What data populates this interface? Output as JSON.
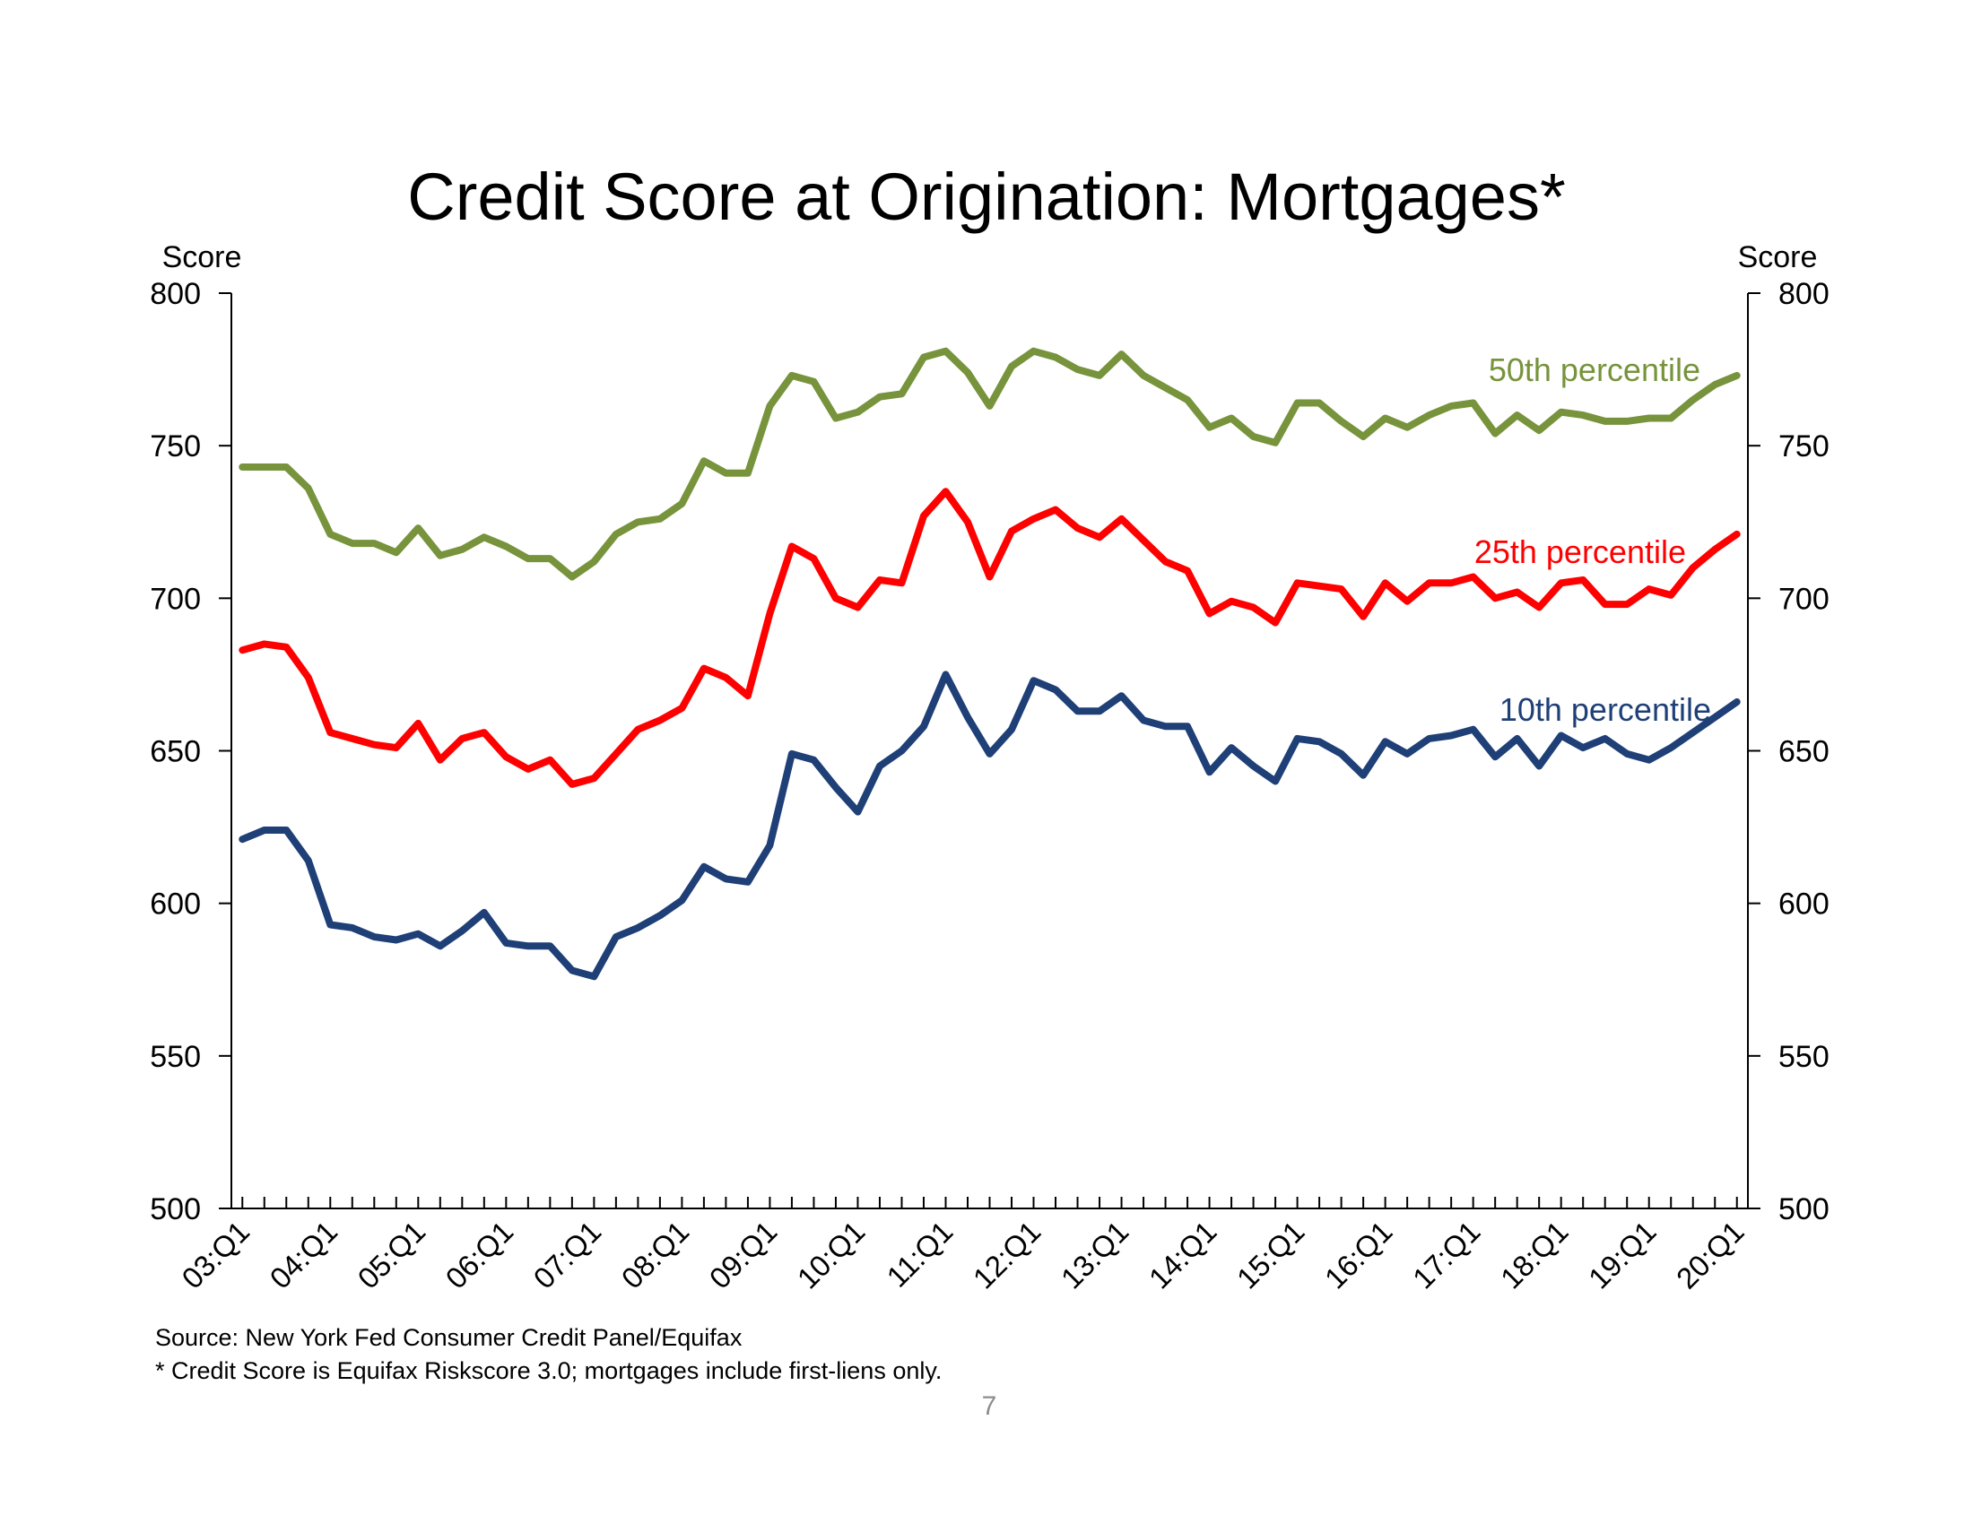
{
  "chart_data": {
    "type": "line",
    "title": "Credit Score at Origination: Mortgages*",
    "ylabel_left": "Score",
    "ylabel_right": "Score",
    "ylim": [
      500,
      800
    ],
    "yticks": [
      500,
      550,
      600,
      650,
      700,
      750,
      800
    ],
    "grid": false,
    "x": [
      "03:Q1",
      "03:Q2",
      "03:Q3",
      "03:Q4",
      "04:Q1",
      "04:Q2",
      "04:Q3",
      "04:Q4",
      "05:Q1",
      "05:Q2",
      "05:Q3",
      "05:Q4",
      "06:Q1",
      "06:Q2",
      "06:Q3",
      "06:Q4",
      "07:Q1",
      "07:Q2",
      "07:Q3",
      "07:Q4",
      "08:Q1",
      "08:Q2",
      "08:Q3",
      "08:Q4",
      "09:Q1",
      "09:Q2",
      "09:Q3",
      "09:Q4",
      "10:Q1",
      "10:Q2",
      "10:Q3",
      "10:Q4",
      "11:Q1",
      "11:Q2",
      "11:Q3",
      "11:Q4",
      "12:Q1",
      "12:Q2",
      "12:Q3",
      "12:Q4",
      "13:Q1",
      "13:Q2",
      "13:Q3",
      "13:Q4",
      "14:Q1",
      "14:Q2",
      "14:Q3",
      "14:Q4",
      "15:Q1",
      "15:Q2",
      "15:Q3",
      "15:Q4",
      "16:Q1",
      "16:Q2",
      "16:Q3",
      "16:Q4",
      "17:Q1",
      "17:Q2",
      "17:Q3",
      "17:Q4",
      "18:Q1",
      "18:Q2",
      "18:Q3",
      "18:Q4",
      "19:Q1",
      "19:Q2",
      "19:Q3",
      "19:Q4",
      "20:Q1"
    ],
    "xtick_labels": [
      "03:Q1",
      "04:Q1",
      "05:Q1",
      "06:Q1",
      "07:Q1",
      "08:Q1",
      "09:Q1",
      "10:Q1",
      "11:Q1",
      "12:Q1",
      "13:Q1",
      "14:Q1",
      "15:Q1",
      "16:Q1",
      "17:Q1",
      "18:Q1",
      "19:Q1",
      "20:Q1"
    ],
    "series": [
      {
        "name": "50th percentile",
        "color": "#77933c",
        "values": [
          743,
          743,
          743,
          736,
          721,
          718,
          718,
          715,
          723,
          714,
          716,
          720,
          717,
          713,
          713,
          707,
          712,
          721,
          725,
          726,
          731,
          745,
          741,
          741,
          763,
          773,
          771,
          759,
          761,
          766,
          767,
          779,
          781,
          774,
          763,
          776,
          781,
          779,
          775,
          773,
          780,
          773,
          769,
          765,
          756,
          759,
          753,
          751,
          764,
          764,
          758,
          753,
          759,
          756,
          760,
          763,
          764,
          754,
          760,
          755,
          761,
          760,
          758,
          758,
          759,
          759,
          765,
          770,
          773
        ]
      },
      {
        "name": "25th percentile",
        "color": "#ff0000",
        "values": [
          683,
          685,
          684,
          674,
          656,
          654,
          652,
          651,
          659,
          647,
          654,
          656,
          648,
          644,
          647,
          639,
          641,
          649,
          657,
          660,
          664,
          677,
          674,
          668,
          695,
          717,
          713,
          700,
          697,
          706,
          705,
          727,
          735,
          725,
          707,
          722,
          726,
          729,
          723,
          720,
          726,
          719,
          712,
          709,
          695,
          699,
          697,
          692,
          705,
          704,
          703,
          694,
          705,
          699,
          705,
          705,
          707,
          700,
          702,
          697,
          705,
          706,
          698,
          698,
          703,
          701,
          710,
          716,
          721
        ]
      },
      {
        "name": "10th percentile",
        "color": "#1f3f77",
        "values": [
          621,
          624,
          624,
          614,
          593,
          592,
          589,
          588,
          590,
          586,
          591,
          597,
          587,
          586,
          586,
          578,
          576,
          589,
          592,
          596,
          601,
          612,
          608,
          607,
          619,
          649,
          647,
          638,
          630,
          645,
          650,
          658,
          675,
          661,
          649,
          657,
          673,
          670,
          663,
          663,
          668,
          660,
          658,
          658,
          643,
          651,
          645,
          640,
          654,
          653,
          649,
          642,
          653,
          649,
          654,
          655,
          657,
          648,
          654,
          645,
          655,
          651,
          654,
          649,
          647,
          651,
          656,
          661,
          666
        ]
      }
    ],
    "notes": [
      "Source: New York Fed Consumer Credit Panel/Equifax",
      "* Credit Score is Equifax Riskscore 3.0; mortgages include first-liens only."
    ]
  },
  "page_number": "7"
}
